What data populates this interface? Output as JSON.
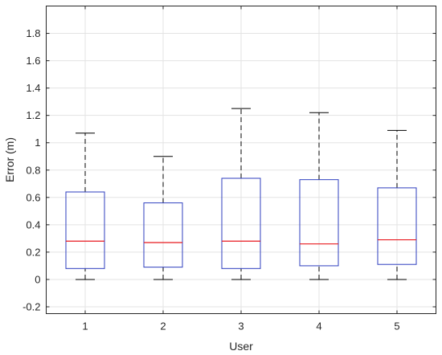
{
  "chart_data": {
    "type": "box",
    "xlabel": "User",
    "ylabel": "Error (m)",
    "ylim": [
      -0.25,
      2.0
    ],
    "yticks": [
      "-0.2",
      "0",
      "0.2",
      "0.4",
      "0.6",
      "0.8",
      "1",
      "1.2",
      "1.4",
      "1.6",
      "1.8"
    ],
    "categories": [
      "1",
      "2",
      "3",
      "4",
      "5"
    ],
    "grid": true,
    "boxes": [
      {
        "category": "1",
        "min": 0.0,
        "q1": 0.08,
        "median": 0.28,
        "q3": 0.64,
        "max": 1.07
      },
      {
        "category": "2",
        "min": 0.0,
        "q1": 0.09,
        "median": 0.27,
        "q3": 0.56,
        "max": 0.9
      },
      {
        "category": "3",
        "min": 0.0,
        "q1": 0.08,
        "median": 0.28,
        "q3": 0.74,
        "max": 1.25
      },
      {
        "category": "4",
        "min": 0.0,
        "q1": 0.1,
        "median": 0.26,
        "q3": 0.73,
        "max": 1.22
      },
      {
        "category": "5",
        "min": 0.0,
        "q1": 0.11,
        "median": 0.29,
        "q3": 0.67,
        "max": 1.09
      }
    ],
    "colors": {
      "box": "#2f3fbf",
      "median": "#e8191f",
      "whisker": "#000000",
      "grid": "#e3e3e3"
    }
  }
}
